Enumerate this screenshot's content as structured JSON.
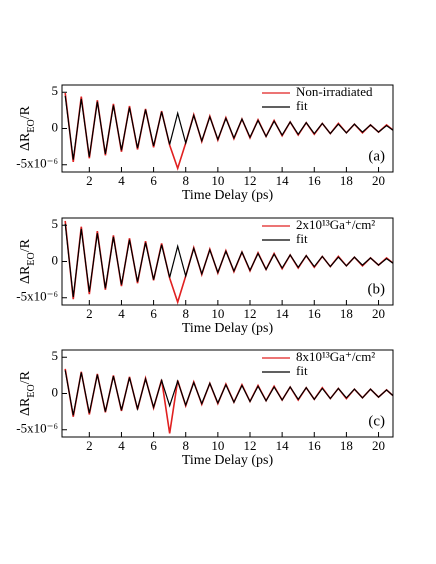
{
  "chart_data": [
    {
      "type": "line",
      "panel_label": "(a)",
      "x_label": "Time Delay (ps)",
      "y_label": [
        "ΔR",
        "EO",
        "/R"
      ],
      "xlim": [
        0.3,
        20.9
      ],
      "xticks": [
        2,
        4,
        6,
        8,
        10,
        12,
        14,
        16,
        18,
        20
      ],
      "ylim": [
        -6,
        6
      ],
      "yticks": [
        5,
        0,
        {
          "value": -5,
          "label": "-5x10⁻⁶"
        }
      ],
      "legend": "upper right",
      "x": [
        0.5,
        1,
        1.5,
        2,
        2.5,
        3,
        3.5,
        4,
        4.5,
        5,
        5.5,
        6,
        6.5,
        7,
        7.5,
        8,
        8.5,
        9,
        9.5,
        10,
        10.5,
        11,
        11.5,
        12,
        12.5,
        13,
        13.5,
        14,
        14.5,
        15,
        15.5,
        16,
        16.5,
        17,
        17.5,
        18,
        18.5,
        19,
        19.5,
        20,
        20.5,
        21
      ],
      "series": [
        {
          "name": "Non-irradiated",
          "color": "#e02020",
          "values": [
            4.9,
            -4.6,
            4.4,
            -4.1,
            3.9,
            -3.7,
            3.4,
            -3.2,
            3.1,
            -2.9,
            2.7,
            -2.6,
            2.4,
            -2.3,
            -5.5,
            -2.0,
            1.9,
            -1.8,
            1.7,
            -1.6,
            1.5,
            -1.4,
            1.3,
            -1.3,
            1.2,
            -1.1,
            1.1,
            -1.0,
            0.9,
            -0.9,
            0.8,
            -0.8,
            0.7,
            -0.7,
            0.7,
            -0.6,
            0.6,
            -0.6,
            0.5,
            -0.5,
            0.5,
            -0.4
          ]
        },
        {
          "name": "fit",
          "color": "#000000",
          "values": [
            4.5,
            -4.3,
            4.1,
            -3.9,
            3.7,
            -3.5,
            3.2,
            -3.0,
            2.9,
            -2.7,
            2.6,
            -2.4,
            2.3,
            -2.2,
            2.1,
            -2.0,
            1.8,
            -1.7,
            1.6,
            -1.5,
            1.4,
            -1.3,
            1.3,
            -1.2,
            1.1,
            -1.1,
            1.0,
            -0.9,
            0.9,
            -0.8,
            0.8,
            -0.7,
            0.7,
            -0.7,
            0.6,
            -0.6,
            0.6,
            -0.5,
            0.5,
            -0.5,
            0.4,
            -0.4
          ]
        }
      ]
    },
    {
      "type": "line",
      "panel_label": "(b)",
      "x_label": "Time Delay (ps)",
      "y_label": [
        "ΔR",
        "EO",
        "/R"
      ],
      "xlim": [
        0.3,
        20.9
      ],
      "xticks": [
        2,
        4,
        6,
        8,
        10,
        12,
        14,
        16,
        18,
        20
      ],
      "ylim": [
        -6,
        6
      ],
      "yticks": [
        5,
        0,
        {
          "value": -5,
          "label": "-5x10⁻⁶"
        }
      ],
      "legend": "upper right",
      "x": [
        0.5,
        1,
        1.5,
        2,
        2.5,
        3,
        3.5,
        4,
        4.5,
        5,
        5.5,
        6,
        6.5,
        7,
        7.5,
        8,
        8.5,
        9,
        9.5,
        10,
        10.5,
        11,
        11.5,
        12,
        12.5,
        13,
        13.5,
        14,
        14.5,
        15,
        15.5,
        16,
        16.5,
        17,
        17.5,
        18,
        18.5,
        19,
        19.5,
        20,
        20.5,
        21
      ],
      "series": [
        {
          "name": "2x10¹³Ga⁺/cm²",
          "color": "#e02020",
          "values": [
            5.6,
            -5.2,
            4.8,
            -4.5,
            4.2,
            -3.9,
            3.6,
            -3.4,
            3.2,
            -3.0,
            2.8,
            -2.6,
            2.5,
            -2.3,
            -5.6,
            -2.0,
            1.9,
            -1.8,
            1.7,
            -1.6,
            1.5,
            -1.4,
            1.3,
            -1.3,
            1.2,
            -1.1,
            1.1,
            -1.0,
            0.9,
            -0.9,
            0.8,
            -0.8,
            0.7,
            -0.7,
            0.7,
            -0.6,
            0.6,
            -0.6,
            0.5,
            -0.5,
            0.5,
            -0.4
          ]
        },
        {
          "name": "fit",
          "color": "#000000",
          "values": [
            5.2,
            -4.9,
            4.5,
            -4.2,
            3.9,
            -3.7,
            3.4,
            -3.2,
            3.0,
            -2.8,
            2.6,
            -2.5,
            2.3,
            -2.2,
            2.1,
            -2.0,
            1.8,
            -1.7,
            1.6,
            -1.5,
            1.4,
            -1.3,
            1.3,
            -1.2,
            1.1,
            -1.1,
            1.0,
            -0.9,
            0.9,
            -0.8,
            0.8,
            -0.7,
            0.7,
            -0.7,
            0.6,
            -0.6,
            0.6,
            -0.5,
            0.5,
            -0.5,
            0.4,
            -0.4
          ]
        }
      ]
    },
    {
      "type": "line",
      "panel_label": "(c)",
      "x_label": "Time Delay (ps)",
      "y_label": [
        "ΔR",
        "EO",
        "/R"
      ],
      "xlim": [
        0.3,
        20.9
      ],
      "xticks": [
        2,
        4,
        6,
        8,
        10,
        12,
        14,
        16,
        18,
        20
      ],
      "ylim": [
        -6,
        6
      ],
      "yticks": [
        5,
        0,
        {
          "value": -5,
          "label": "-5x10⁻⁶"
        }
      ],
      "legend": "upper right",
      "x": [
        0.5,
        1,
        1.5,
        2,
        2.5,
        3,
        3.5,
        4,
        4.5,
        5,
        5.5,
        6,
        6.5,
        7,
        7.5,
        8,
        8.5,
        9,
        9.5,
        10,
        10.5,
        11,
        11.5,
        12,
        12.5,
        13,
        13.5,
        14,
        14.5,
        15,
        15.5,
        16,
        16.5,
        17,
        17.5,
        18,
        18.5,
        19,
        19.5,
        20,
        20.5,
        21
      ],
      "series": [
        {
          "name": "8x10¹³Ga⁺/cm²",
          "color": "#e02020",
          "values": [
            3.4,
            -3.2,
            3.0,
            -2.9,
            2.7,
            -2.6,
            2.5,
            -2.4,
            2.3,
            -2.2,
            2.1,
            -2.0,
            1.9,
            -5.5,
            1.8,
            -1.7,
            1.6,
            -1.5,
            1.4,
            -1.4,
            1.3,
            -1.2,
            1.2,
            -1.1,
            1.1,
            -1.0,
            1.0,
            -0.9,
            0.9,
            -0.9,
            0.8,
            -0.8,
            0.8,
            -0.7,
            0.7,
            -0.7,
            0.6,
            -0.6,
            0.6,
            -0.5,
            0.5,
            -0.5
          ]
        },
        {
          "name": "fit",
          "color": "#000000",
          "values": [
            3.2,
            -3.0,
            2.9,
            -2.7,
            2.6,
            -2.5,
            2.4,
            -2.3,
            2.2,
            -2.1,
            2.0,
            -1.9,
            1.8,
            -1.7,
            1.7,
            -1.6,
            1.5,
            -1.4,
            1.4,
            -1.3,
            1.2,
            -1.2,
            1.1,
            -1.1,
            1.0,
            -1.0,
            0.9,
            -0.9,
            0.9,
            -0.8,
            0.8,
            -0.8,
            0.7,
            -0.7,
            0.7,
            -0.6,
            0.6,
            -0.6,
            0.6,
            -0.5,
            0.5,
            -0.5
          ]
        }
      ]
    }
  ]
}
